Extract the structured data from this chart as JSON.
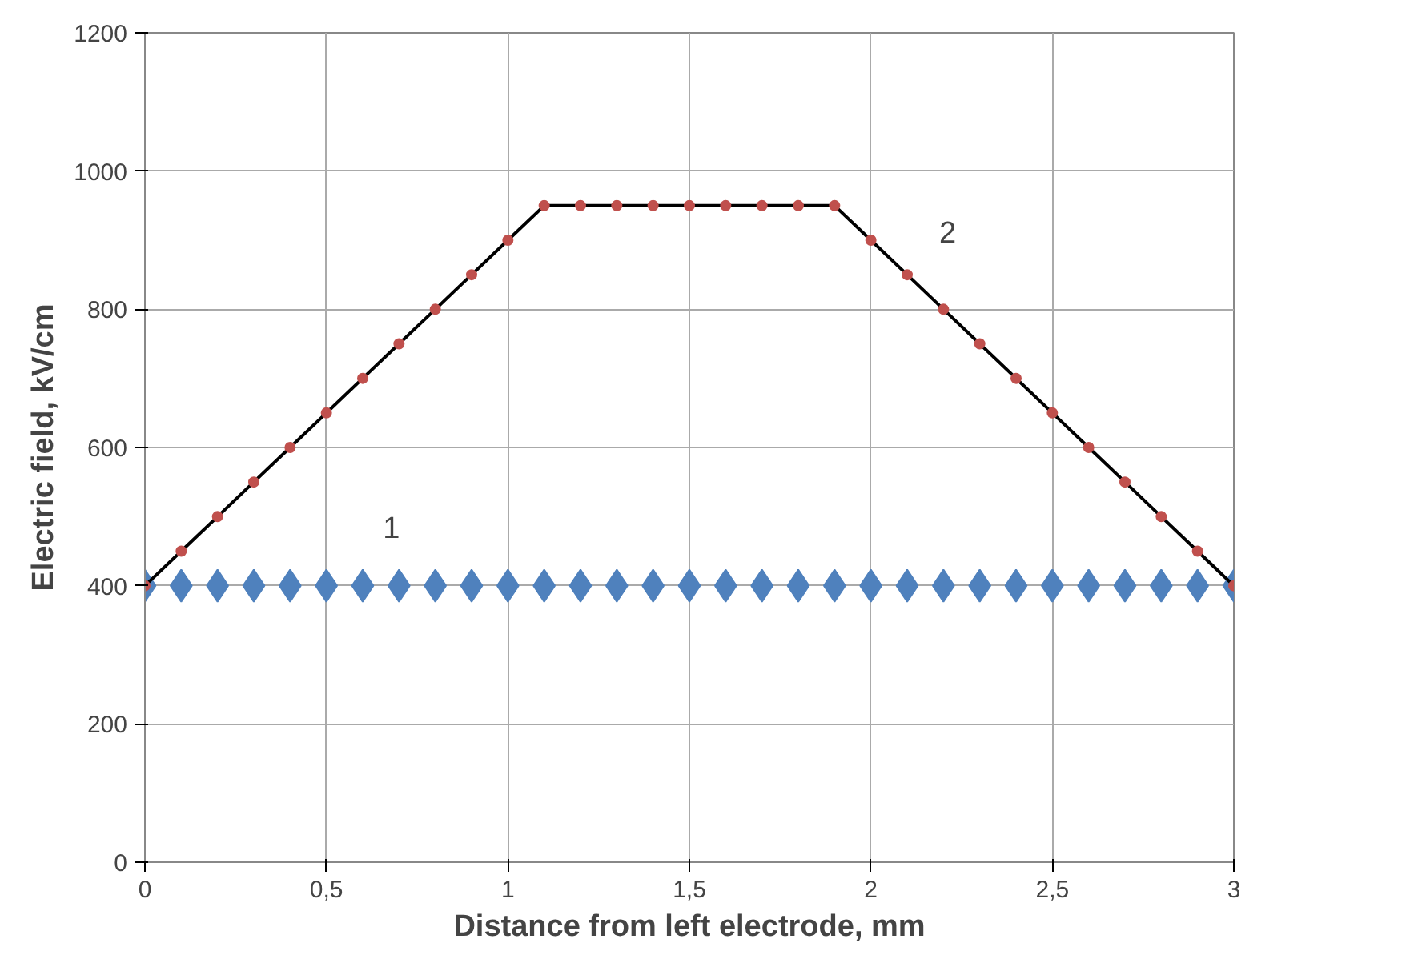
{
  "chart_data": {
    "type": "line",
    "xlabel": "Distance from left electrode, mm",
    "ylabel": "Electric field, kV/cm",
    "x": [
      0,
      0.1,
      0.2,
      0.3,
      0.4,
      0.5,
      0.6,
      0.7,
      0.8,
      0.9,
      1.0,
      1.1,
      1.2,
      1.3,
      1.4,
      1.5,
      1.6,
      1.7,
      1.8,
      1.9,
      2.0,
      2.1,
      2.2,
      2.3,
      2.4,
      2.5,
      2.6,
      2.7,
      2.8,
      2.9,
      3.0
    ],
    "series": [
      {
        "name": "1",
        "type": "scatter",
        "marker": "diamond",
        "color": "#4f81bd",
        "values": [
          400,
          400,
          400,
          400,
          400,
          400,
          400,
          400,
          400,
          400,
          400,
          400,
          400,
          400,
          400,
          400,
          400,
          400,
          400,
          400,
          400,
          400,
          400,
          400,
          400,
          400,
          400,
          400,
          400,
          400,
          400
        ]
      },
      {
        "name": "2",
        "marker": "circle",
        "color": "#000000",
        "colors": [
          "#c0504d",
          "#c0504d",
          "#c0504d",
          "#c0504d",
          "#c0504d",
          "#c0504d",
          "#c0504d",
          "#c0504d",
          "#c0504d",
          "#c0504d",
          "#c0504d",
          "#c0504d",
          "#c0504d",
          "#c0504d",
          "#c0504d",
          "#c0504d",
          "#c0504d",
          "#c0504d",
          "#c0504d",
          "#c0504d",
          "#c0504d",
          "#c0504d",
          "#c0504d",
          "#c0504d",
          "#c0504d",
          "#c0504d",
          "#c0504d",
          "#c0504d",
          "#c0504d",
          "#c0504d",
          "#c0504d"
        ],
        "values": [
          400,
          450,
          500,
          550,
          600,
          650,
          700,
          750,
          800,
          850,
          900,
          950,
          950,
          950,
          950,
          950,
          950,
          950,
          950,
          950,
          900,
          850,
          800,
          750,
          700,
          650,
          600,
          550,
          500,
          450,
          400
        ]
      }
    ],
    "xlim": [
      0,
      3
    ],
    "ylim": [
      0,
      1200
    ],
    "xticks": [
      0,
      {
        "value": 0.5,
        "label": "0,5"
      },
      1,
      {
        "value": 1.5,
        "label": "1,5"
      },
      2,
      {
        "value": 2.5,
        "label": "2,5"
      },
      3
    ],
    "yticks": [
      0,
      200,
      400,
      600,
      800,
      1000,
      1200
    ],
    "grid": true
  }
}
